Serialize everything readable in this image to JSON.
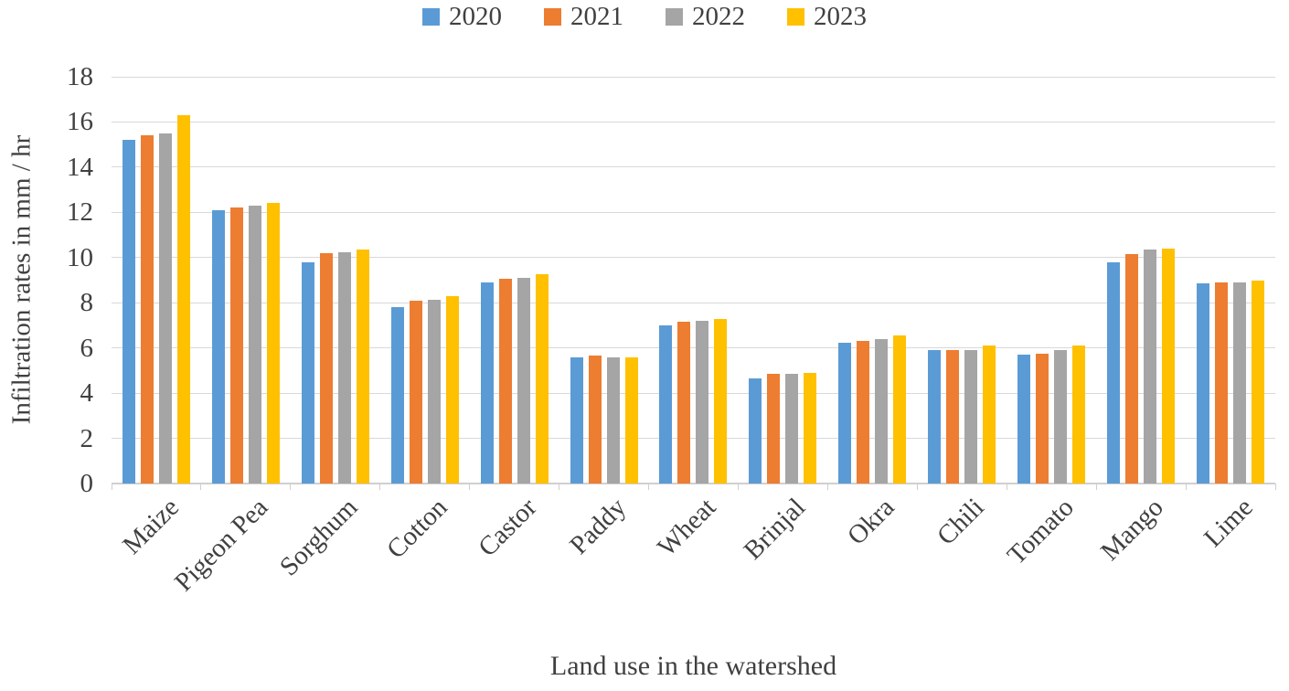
{
  "chart_data": {
    "type": "bar",
    "title": "",
    "xlabel": "Land use in the watershed",
    "ylabel": "Infiltration rates in mm / hr",
    "categories": [
      "Maize",
      "Pigeon Pea",
      "Sorghum",
      "Cotton",
      "Castor",
      "Paddy",
      "Wheat",
      "Brinjal",
      "Okra",
      "Chili",
      "Tomato",
      "Mango",
      "Lime"
    ],
    "series": [
      {
        "name": "2020",
        "color": "#5B9BD5",
        "values": [
          15.2,
          12.1,
          9.8,
          7.8,
          8.9,
          5.6,
          7.0,
          4.65,
          6.25,
          5.9,
          5.7,
          9.8,
          8.85
        ]
      },
      {
        "name": "2021",
        "color": "#ED7D31",
        "values": [
          15.4,
          12.2,
          10.2,
          8.1,
          9.05,
          5.65,
          7.15,
          4.85,
          6.3,
          5.9,
          5.75,
          10.15,
          8.9
        ]
      },
      {
        "name": "2022",
        "color": "#A5A5A5",
        "values": [
          15.5,
          12.3,
          10.25,
          8.15,
          9.1,
          5.6,
          7.2,
          4.85,
          6.4,
          5.9,
          5.9,
          10.35,
          8.9
        ]
      },
      {
        "name": "2023",
        "color": "#FFC000",
        "values": [
          16.3,
          12.4,
          10.35,
          8.3,
          9.25,
          5.6,
          7.3,
          4.9,
          6.55,
          6.1,
          6.1,
          10.4,
          9.0
        ]
      }
    ],
    "ylim": [
      0,
      18
    ],
    "ytick_step": 2,
    "grid": true,
    "legend_position": "top-center"
  },
  "colors": {
    "text": "#404040",
    "gridline": "#d9d9d9",
    "axis_line": "#cfcfcf"
  }
}
